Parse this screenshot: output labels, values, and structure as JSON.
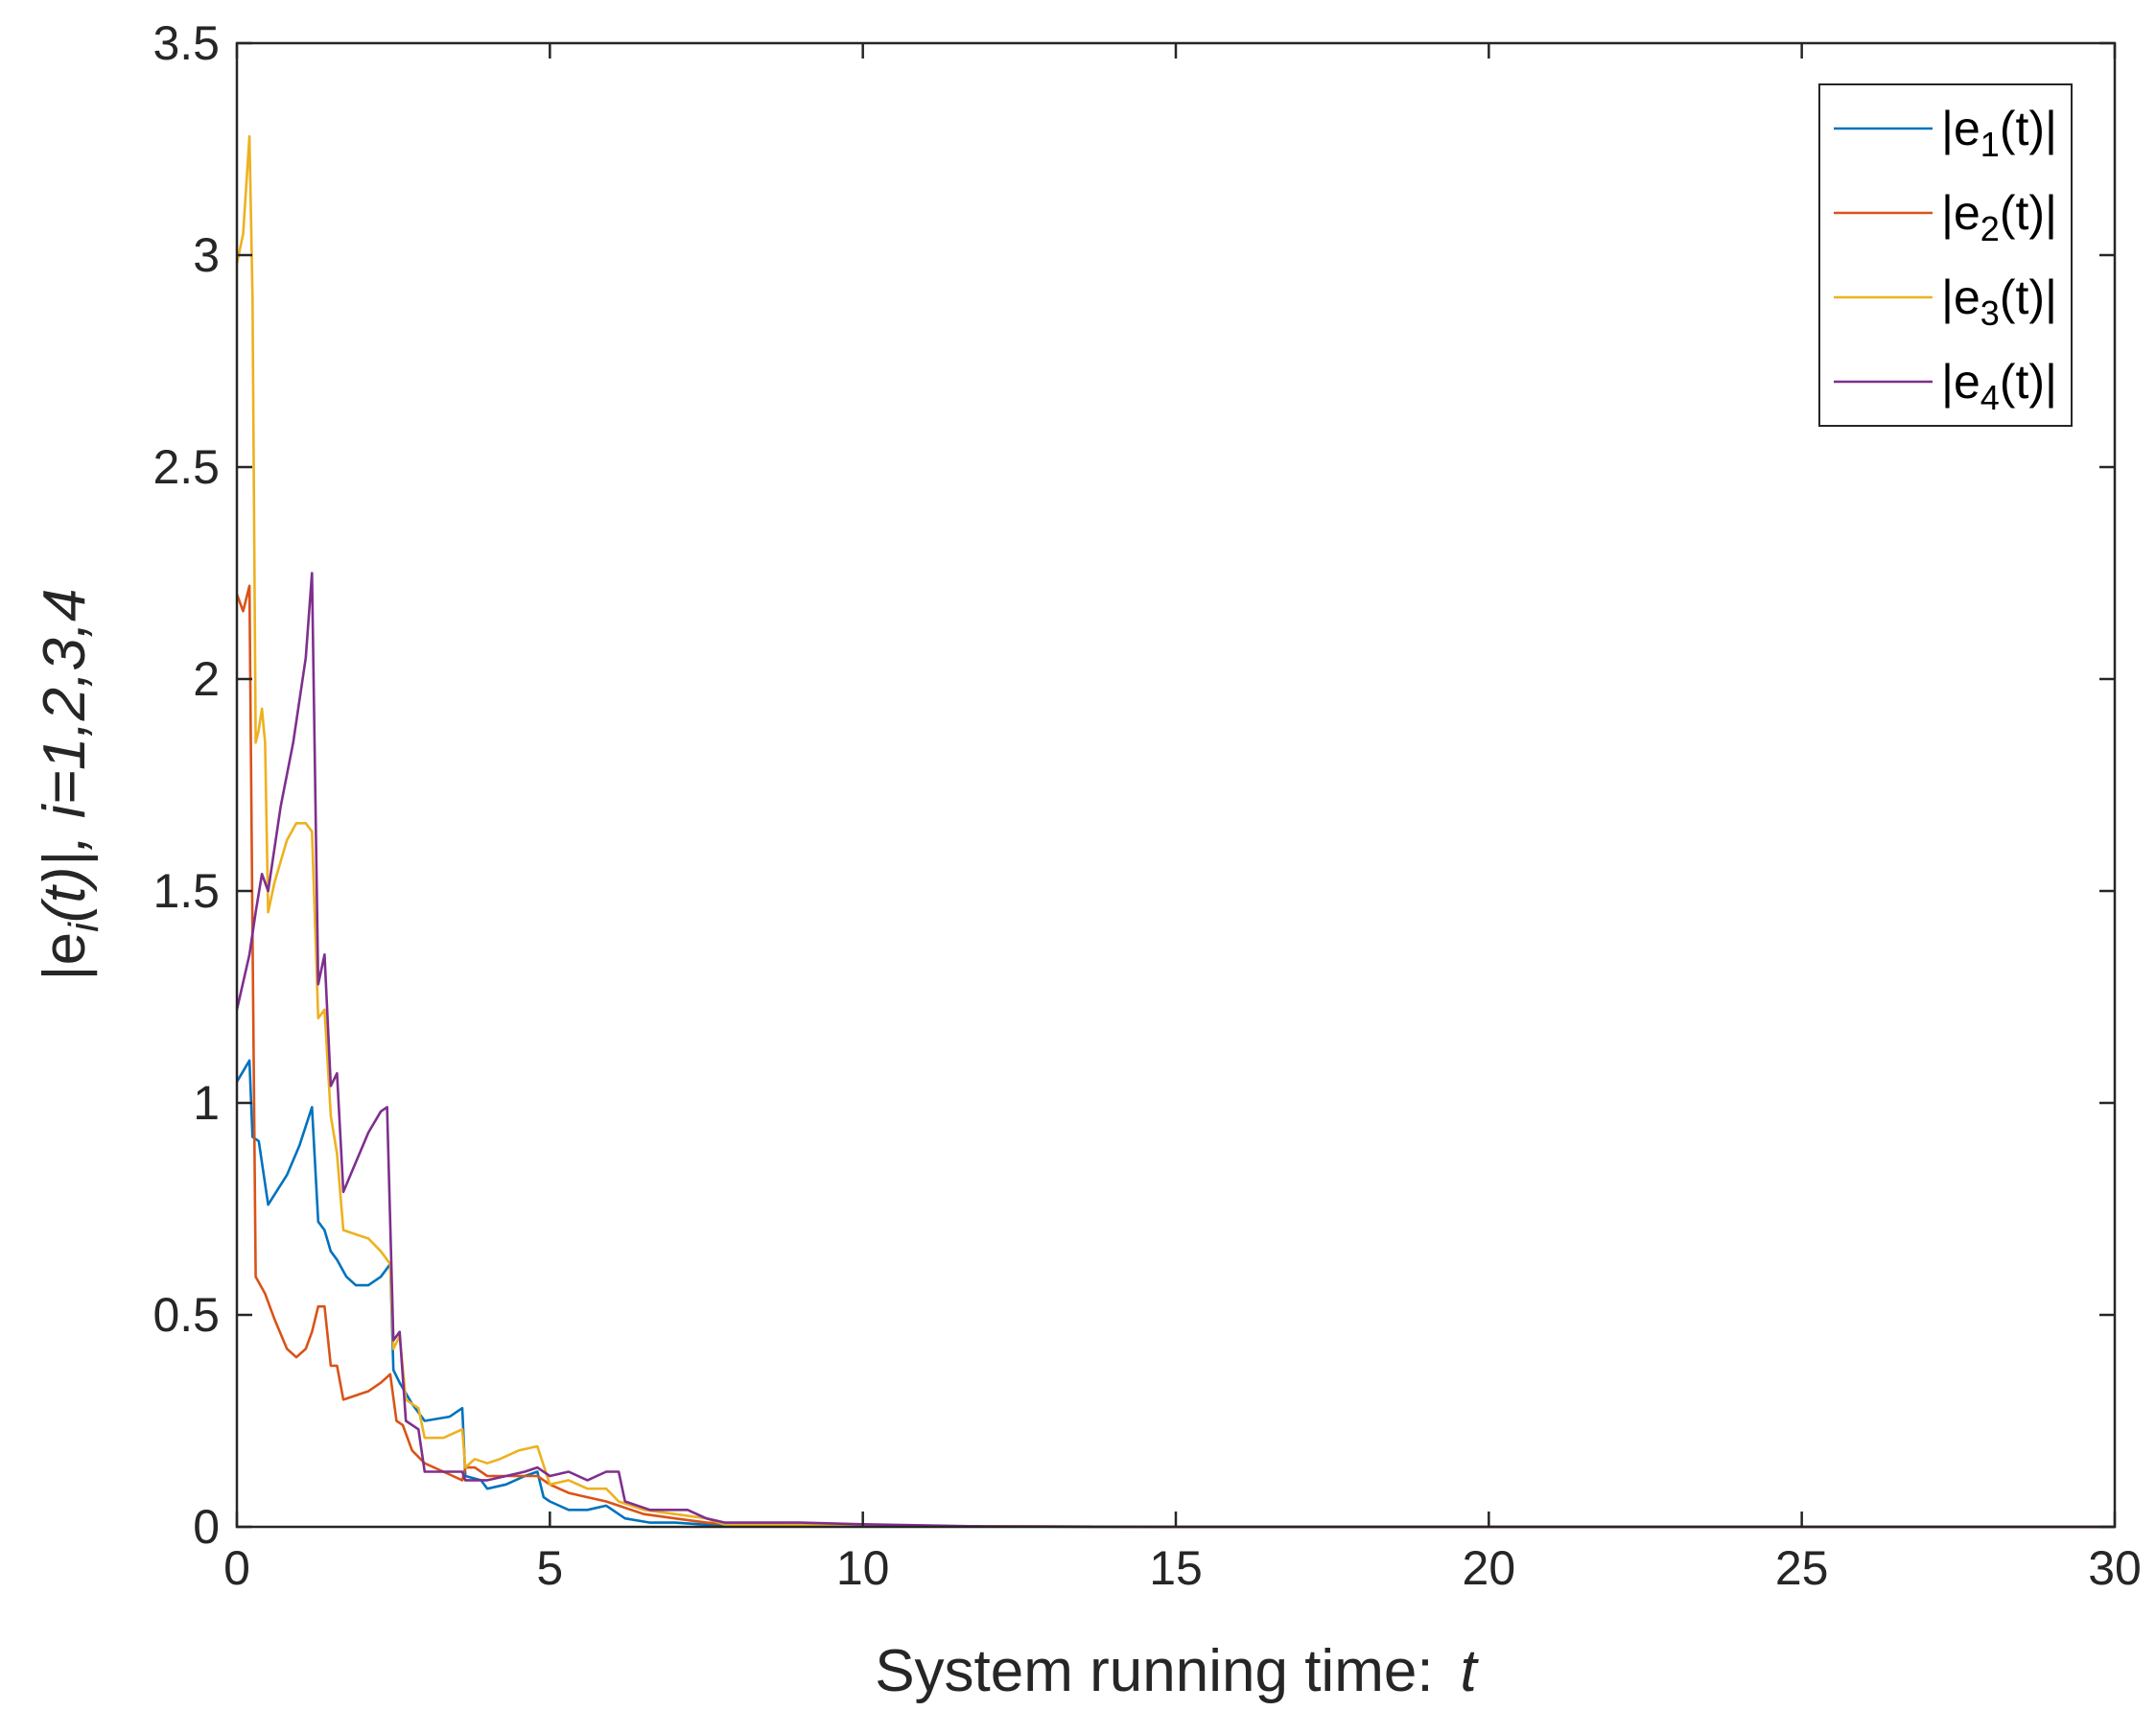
{
  "chart_data": {
    "type": "line",
    "title": "",
    "xlabel": {
      "main": "System running time:",
      "var": "t"
    },
    "ylabel": {
      "base": "|e",
      "sub": "i",
      "paren": "(t)|, ",
      "var": "i",
      "rest": "=1,2,3,4"
    },
    "xlim": [
      0,
      30
    ],
    "ylim": [
      0,
      3.5
    ],
    "xticks": [
      0,
      5,
      10,
      15,
      20,
      25,
      30
    ],
    "yticks": [
      0,
      0.5,
      1,
      1.5,
      2,
      2.5,
      3,
      3.5
    ],
    "xtick_labels": [
      "0",
      "5",
      "10",
      "15",
      "20",
      "25",
      "30"
    ],
    "ytick_labels": [
      "0",
      "0.5",
      "1",
      "1.5",
      "2",
      "2.5",
      "3",
      "3.5"
    ],
    "grid": false,
    "legend_position": "top-right",
    "series": [
      {
        "name": "|e1(t)|",
        "label_pre": "|e",
        "label_sub": "1",
        "label_post": "(t)|",
        "color": "#0072BD",
        "points": [
          [
            0,
            1.05
          ],
          [
            0.2,
            1.1
          ],
          [
            0.25,
            0.92
          ],
          [
            0.35,
            0.91
          ],
          [
            0.5,
            0.76
          ],
          [
            0.8,
            0.83
          ],
          [
            1.0,
            0.9
          ],
          [
            1.2,
            0.99
          ],
          [
            1.3,
            0.72
          ],
          [
            1.4,
            0.7
          ],
          [
            1.5,
            0.65
          ],
          [
            1.6,
            0.63
          ],
          [
            1.75,
            0.59
          ],
          [
            1.9,
            0.57
          ],
          [
            2.1,
            0.57
          ],
          [
            2.3,
            0.59
          ],
          [
            2.45,
            0.62
          ],
          [
            2.5,
            0.37
          ],
          [
            2.6,
            0.34
          ],
          [
            2.8,
            0.29
          ],
          [
            3.0,
            0.25
          ],
          [
            3.4,
            0.26
          ],
          [
            3.6,
            0.28
          ],
          [
            3.65,
            0.12
          ],
          [
            3.9,
            0.11
          ],
          [
            4.0,
            0.09
          ],
          [
            4.3,
            0.1
          ],
          [
            4.6,
            0.12
          ],
          [
            4.8,
            0.13
          ],
          [
            4.9,
            0.07
          ],
          [
            5.0,
            0.06
          ],
          [
            5.3,
            0.04
          ],
          [
            5.6,
            0.04
          ],
          [
            5.9,
            0.05
          ],
          [
            6.0,
            0.04
          ],
          [
            6.2,
            0.02
          ],
          [
            6.6,
            0.01
          ],
          [
            7.0,
            0.01
          ],
          [
            7.5,
            0.005
          ],
          [
            8,
            0.003
          ],
          [
            10,
            0.002
          ],
          [
            12,
            0.001
          ],
          [
            15,
            0
          ],
          [
            30,
            0
          ]
        ]
      },
      {
        "name": "|e2(t)|",
        "label_pre": "|e",
        "label_sub": "2",
        "label_post": "(t)|",
        "color": "#D95319",
        "points": [
          [
            0,
            2.2
          ],
          [
            0.1,
            2.16
          ],
          [
            0.2,
            2.22
          ],
          [
            0.25,
            1.4
          ],
          [
            0.3,
            0.59
          ],
          [
            0.45,
            0.55
          ],
          [
            0.6,
            0.49
          ],
          [
            0.8,
            0.42
          ],
          [
            0.95,
            0.4
          ],
          [
            1.1,
            0.42
          ],
          [
            1.2,
            0.46
          ],
          [
            1.3,
            0.52
          ],
          [
            1.4,
            0.52
          ],
          [
            1.5,
            0.38
          ],
          [
            1.6,
            0.38
          ],
          [
            1.7,
            0.3
          ],
          [
            1.9,
            0.31
          ],
          [
            2.1,
            0.32
          ],
          [
            2.3,
            0.34
          ],
          [
            2.45,
            0.36
          ],
          [
            2.55,
            0.25
          ],
          [
            2.65,
            0.24
          ],
          [
            2.8,
            0.18
          ],
          [
            3.0,
            0.15
          ],
          [
            3.3,
            0.13
          ],
          [
            3.6,
            0.11
          ],
          [
            3.65,
            0.14
          ],
          [
            3.8,
            0.14
          ],
          [
            4.0,
            0.12
          ],
          [
            4.3,
            0.12
          ],
          [
            4.6,
            0.12
          ],
          [
            4.8,
            0.12
          ],
          [
            5.0,
            0.1
          ],
          [
            5.3,
            0.08
          ],
          [
            5.6,
            0.07
          ],
          [
            5.9,
            0.06
          ],
          [
            6.1,
            0.05
          ],
          [
            6.5,
            0.03
          ],
          [
            7.0,
            0.02
          ],
          [
            7.5,
            0.01
          ],
          [
            8,
            0.005
          ],
          [
            10,
            0.003
          ],
          [
            12,
            0.001
          ],
          [
            15,
            0
          ],
          [
            30,
            0
          ]
        ]
      },
      {
        "name": "|e3(t)|",
        "label_pre": "|e",
        "label_sub": "3",
        "label_post": "(t)|",
        "color": "#EDB120",
        "points": [
          [
            0,
            2.98
          ],
          [
            0.1,
            3.05
          ],
          [
            0.2,
            3.28
          ],
          [
            0.25,
            2.9
          ],
          [
            0.3,
            1.85
          ],
          [
            0.35,
            1.88
          ],
          [
            0.4,
            1.93
          ],
          [
            0.45,
            1.85
          ],
          [
            0.5,
            1.45
          ],
          [
            0.6,
            1.52
          ],
          [
            0.8,
            1.62
          ],
          [
            0.95,
            1.66
          ],
          [
            1.1,
            1.66
          ],
          [
            1.2,
            1.64
          ],
          [
            1.3,
            1.2
          ],
          [
            1.4,
            1.22
          ],
          [
            1.5,
            0.97
          ],
          [
            1.6,
            0.88
          ],
          [
            1.7,
            0.7
          ],
          [
            1.9,
            0.69
          ],
          [
            2.1,
            0.68
          ],
          [
            2.3,
            0.65
          ],
          [
            2.45,
            0.62
          ],
          [
            2.5,
            0.42
          ],
          [
            2.6,
            0.45
          ],
          [
            2.7,
            0.3
          ],
          [
            2.9,
            0.28
          ],
          [
            3.0,
            0.21
          ],
          [
            3.3,
            0.21
          ],
          [
            3.6,
            0.23
          ],
          [
            3.65,
            0.14
          ],
          [
            3.8,
            0.16
          ],
          [
            4.0,
            0.15
          ],
          [
            4.2,
            0.16
          ],
          [
            4.5,
            0.18
          ],
          [
            4.8,
            0.19
          ],
          [
            5.0,
            0.1
          ],
          [
            5.3,
            0.11
          ],
          [
            5.6,
            0.09
          ],
          [
            5.9,
            0.09
          ],
          [
            6.1,
            0.06
          ],
          [
            6.5,
            0.04
          ],
          [
            7.0,
            0.03
          ],
          [
            7.5,
            0.02
          ],
          [
            7.8,
            0.005
          ],
          [
            8.5,
            0.005
          ],
          [
            10,
            0.003
          ],
          [
            12,
            0.001
          ],
          [
            15,
            0
          ],
          [
            30,
            0
          ]
        ]
      },
      {
        "name": "|e4(t)|",
        "label_pre": "|e",
        "label_sub": "4",
        "label_post": "(t)|",
        "color": "#7E2F8E",
        "points": [
          [
            0,
            1.22
          ],
          [
            0.2,
            1.35
          ],
          [
            0.3,
            1.45
          ],
          [
            0.4,
            1.54
          ],
          [
            0.5,
            1.5
          ],
          [
            0.7,
            1.7
          ],
          [
            0.9,
            1.85
          ],
          [
            1.1,
            2.05
          ],
          [
            1.2,
            2.25
          ],
          [
            1.3,
            1.28
          ],
          [
            1.4,
            1.35
          ],
          [
            1.5,
            1.04
          ],
          [
            1.6,
            1.07
          ],
          [
            1.7,
            0.79
          ],
          [
            1.9,
            0.86
          ],
          [
            2.1,
            0.93
          ],
          [
            2.3,
            0.98
          ],
          [
            2.4,
            0.99
          ],
          [
            2.5,
            0.44
          ],
          [
            2.6,
            0.46
          ],
          [
            2.7,
            0.25
          ],
          [
            2.9,
            0.23
          ],
          [
            3.0,
            0.13
          ],
          [
            3.3,
            0.13
          ],
          [
            3.6,
            0.13
          ],
          [
            3.65,
            0.11
          ],
          [
            4.0,
            0.11
          ],
          [
            4.3,
            0.12
          ],
          [
            4.6,
            0.13
          ],
          [
            4.8,
            0.14
          ],
          [
            5.0,
            0.12
          ],
          [
            5.3,
            0.13
          ],
          [
            5.6,
            0.11
          ],
          [
            5.9,
            0.13
          ],
          [
            6.1,
            0.13
          ],
          [
            6.2,
            0.06
          ],
          [
            6.6,
            0.04
          ],
          [
            7.0,
            0.04
          ],
          [
            7.2,
            0.04
          ],
          [
            7.5,
            0.02
          ],
          [
            7.8,
            0.01
          ],
          [
            9,
            0.01
          ],
          [
            10,
            0.006
          ],
          [
            12,
            0.001
          ],
          [
            15,
            0
          ],
          [
            30,
            0
          ]
        ]
      }
    ]
  }
}
